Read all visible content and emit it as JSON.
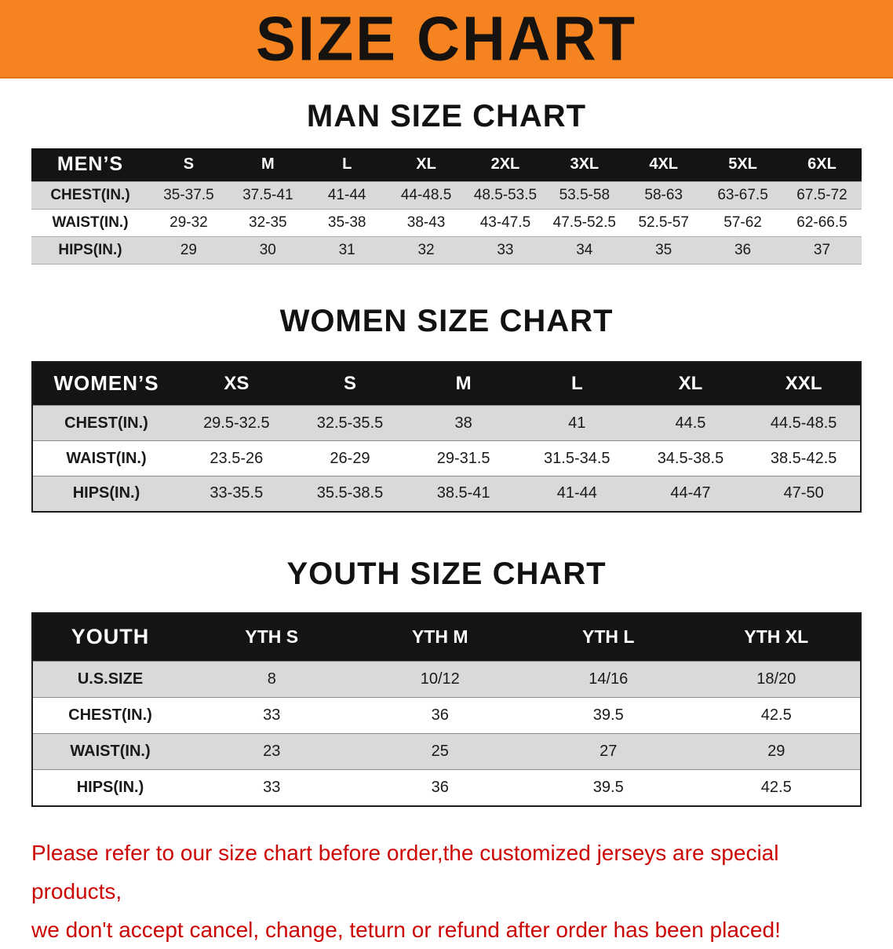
{
  "banner": {
    "title": "SIZE CHART",
    "bg_color": "#f5831f"
  },
  "colors": {
    "table_header_bg": "#141414",
    "table_header_text": "#ffffff",
    "stripe_gray": "#d9d9d9",
    "disclaimer_red": "#cc0505"
  },
  "sections": [
    {
      "title": "MAN SIZE CHART",
      "table": {
        "header": [
          "MEN’S",
          "S",
          "M",
          "L",
          "XL",
          "2XL",
          "3XL",
          "4XL",
          "5XL",
          "6XL"
        ],
        "rows": [
          [
            "CHEST(IN.)",
            "35-37.5",
            "37.5-41",
            "41-44",
            "44-48.5",
            "48.5-53.5",
            "53.5-58",
            "58-63",
            "63-67.5",
            "67.5-72"
          ],
          [
            "WAIST(IN.)",
            "29-32",
            "32-35",
            "35-38",
            "38-43",
            "43-47.5",
            "47.5-52.5",
            "52.5-57",
            "57-62",
            "62-66.5"
          ],
          [
            "HIPS(IN.)",
            "29",
            "30",
            "31",
            "32",
            "33",
            "34",
            "35",
            "36",
            "37"
          ]
        ]
      }
    },
    {
      "title": "WOMEN SIZE CHART",
      "table": {
        "header": [
          "WOMEN’S",
          "XS",
          "S",
          "M",
          "L",
          "XL",
          "XXL"
        ],
        "rows": [
          [
            "CHEST(IN.)",
            "29.5-32.5",
            "32.5-35.5",
            "38",
            "41",
            "44.5",
            "44.5-48.5"
          ],
          [
            "WAIST(IN.)",
            "23.5-26",
            "26-29",
            "29-31.5",
            "31.5-34.5",
            "34.5-38.5",
            "38.5-42.5"
          ],
          [
            "HIPS(IN.)",
            "33-35.5",
            "35.5-38.5",
            "38.5-41",
            "41-44",
            "44-47",
            "47-50"
          ]
        ]
      }
    },
    {
      "title": "YOUTH SIZE CHART",
      "table": {
        "header": [
          "YOUTH",
          "YTH S",
          "YTH M",
          "YTH L",
          "YTH XL"
        ],
        "rows": [
          [
            "U.S.SIZE",
            "8",
            "10/12",
            "14/16",
            "18/20"
          ],
          [
            "CHEST(IN.)",
            "33",
            "36",
            "39.5",
            "42.5"
          ],
          [
            "WAIST(IN.)",
            "23",
            "25",
            "27",
            "29"
          ],
          [
            "HIPS(IN.)",
            "33",
            "36",
            "39.5",
            "42.5"
          ]
        ]
      }
    }
  ],
  "disclaimer": {
    "lines": [
      "Please refer to our size chart before order,the customized jerseys are special products,",
      "we don't accept cancel, change, teturn or refund after order has been placed!"
    ]
  }
}
